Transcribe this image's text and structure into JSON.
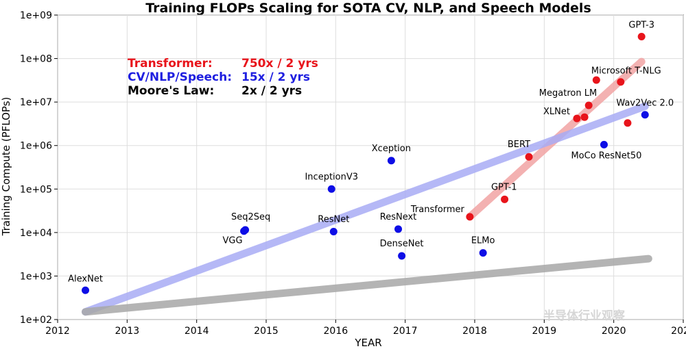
{
  "chart_data": {
    "type": "scatter",
    "title": "Training FLOPs Scaling for SOTA CV, NLP, and Speech Models",
    "xlabel": "YEAR",
    "ylabel": "Training Compute (PFLOPs)",
    "xlim": [
      2012,
      2021
    ],
    "ylim": [
      100,
      1000000000
    ],
    "yscale": "log",
    "grid": true,
    "x_ticks": [
      2012,
      2013,
      2014,
      2015,
      2016,
      2017,
      2018,
      2019,
      2020,
      2021
    ],
    "y_ticks": [
      {
        "value": 100,
        "label": "1e+02"
      },
      {
        "value": 1000,
        "label": "1e+03"
      },
      {
        "value": 10000,
        "label": "1e+04"
      },
      {
        "value": 100000,
        "label": "1e+05"
      },
      {
        "value": 1000000,
        "label": "1e+06"
      },
      {
        "value": 10000000,
        "label": "1e+07"
      },
      {
        "value": 100000000,
        "label": "1e+08"
      },
      {
        "value": 1000000000,
        "label": "1e+09"
      }
    ],
    "legend": [
      {
        "name": "Transformer:",
        "rate": "750x / 2 yrs",
        "color": "#e8141b"
      },
      {
        "name": "CV/NLP/Speech:",
        "rate": "15x / 2 yrs",
        "color": "#1f1fe0"
      },
      {
        "name": "Moore's Law:",
        "rate": "2x / 2 yrs",
        "color": "#000000"
      }
    ],
    "series": [
      {
        "name": "Transformer",
        "color": "#e8141b",
        "points": [
          {
            "label": "Transformer",
            "x": 2017.93,
            "y": 23000
          },
          {
            "label": "GPT-1",
            "x": 2018.43,
            "y": 58000
          },
          {
            "label": "BERT",
            "x": 2018.78,
            "y": 550000
          },
          {
            "label": "XLNet",
            "x": 2019.47,
            "y": 4200000
          },
          {
            "label": "",
            "x": 2019.58,
            "y": 4500000
          },
          {
            "label": "Megatron LM",
            "x": 2019.64,
            "y": 8400000
          },
          {
            "label": "",
            "x": 2019.75,
            "y": 32000000
          },
          {
            "label": "Microsoft T-NLG",
            "x": 2020.1,
            "y": 29000000
          },
          {
            "label": "",
            "x": 2020.2,
            "y": 3300000
          },
          {
            "label": "GPT-3",
            "x": 2020.4,
            "y": 320000000
          }
        ]
      },
      {
        "name": "CV/NLP/Speech",
        "color": "#0d0de6",
        "points": [
          {
            "label": "AlexNet",
            "x": 2012.4,
            "y": 470
          },
          {
            "label": "Seq2Seq",
            "x": 2014.7,
            "y": 11500
          },
          {
            "label": "VGG",
            "x": 2014.68,
            "y": 10800
          },
          {
            "label": "InceptionV3",
            "x": 2015.94,
            "y": 100000
          },
          {
            "label": "ResNet",
            "x": 2015.97,
            "y": 10500
          },
          {
            "label": "Xception",
            "x": 2016.8,
            "y": 450000
          },
          {
            "label": "ResNext",
            "x": 2016.9,
            "y": 12000
          },
          {
            "label": "DenseNet",
            "x": 2016.95,
            "y": 2900
          },
          {
            "label": "ELMo",
            "x": 2018.12,
            "y": 3400
          },
          {
            "label": "MoCo ResNet50",
            "x": 2019.86,
            "y": 1050000
          },
          {
            "label": "Wav2Vec 2.0",
            "x": 2020.45,
            "y": 5100000
          }
        ]
      }
    ],
    "trend_lines": [
      {
        "name": "Transformer trend",
        "color": "#f2a4a4",
        "from": {
          "x": 2017.93,
          "y": 23000
        },
        "to": {
          "x": 2020.4,
          "y": 85000000
        }
      },
      {
        "name": "CV/NLP/Speech trend",
        "color": "#a9acf5",
        "from": {
          "x": 2012.4,
          "y": 150
        },
        "to": {
          "x": 2020.45,
          "y": 8000000
        }
      },
      {
        "name": "Moore's Law trend",
        "color": "#a8a8a8",
        "from": {
          "x": 2012.4,
          "y": 150
        },
        "to": {
          "x": 2020.5,
          "y": 2500
        }
      }
    ]
  },
  "watermark": "半导体行业观察"
}
